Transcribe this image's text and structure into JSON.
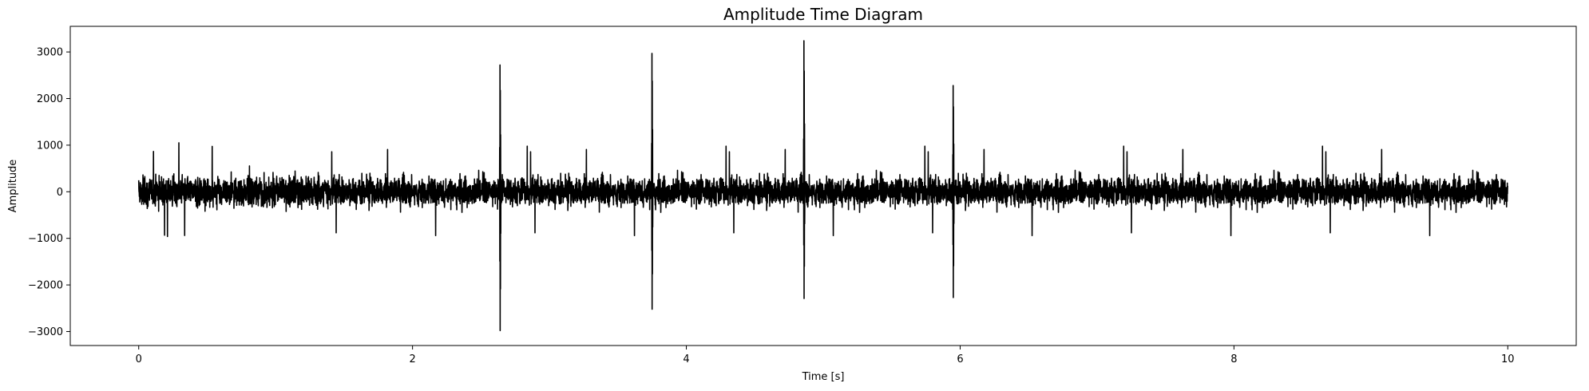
{
  "chart_data": {
    "type": "line",
    "title": "Amplitude Time Diagram",
    "xlabel": "Time [s]",
    "ylabel": "Amplitude",
    "xlim": [
      -0.5,
      10.5
    ],
    "ylim": [
      -3300,
      3550
    ],
    "xticks": [
      0,
      2,
      4,
      6,
      8,
      10
    ],
    "yticks": [
      -3000,
      -2000,
      -1000,
      0,
      1000,
      2000,
      3000
    ],
    "grid": false,
    "legend": "none",
    "line_color": "#000000",
    "series": [
      {
        "x_start": 0,
        "x_end": 10,
        "noise_amplitude_typical": 700,
        "noise_peak_max": 1230,
        "noise_peak_min": -1270,
        "spikes": [
          {
            "x": 2.64,
            "max": 2720,
            "min": -2980
          },
          {
            "x": 3.75,
            "max": 2970,
            "min": -2520
          },
          {
            "x": 4.86,
            "max": 3240,
            "min": -2290
          },
          {
            "x": 5.95,
            "max": 2280,
            "min": -2270
          }
        ]
      }
    ]
  }
}
